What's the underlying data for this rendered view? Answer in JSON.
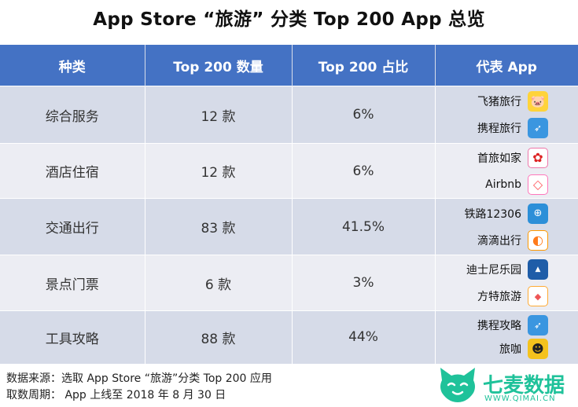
{
  "title": "App Store “旅游” 分类 Top 200 App 总览",
  "table": {
    "headers": [
      "种类",
      "Top 200 数量",
      "Top 200 占比",
      "代表 App"
    ],
    "rows": [
      {
        "category": "综合服务",
        "count": "12 款",
        "share": "6%",
        "apps": [
          {
            "name": "飞猪旅行",
            "icon": "pig-icon"
          },
          {
            "name": "携程旅行",
            "icon": "bird-icon"
          }
        ]
      },
      {
        "category": "酒店住宿",
        "count": "12 款",
        "share": "6%",
        "apps": [
          {
            "name": "首旅如家",
            "icon": "hotel-icon"
          },
          {
            "name": "Airbnb",
            "icon": "airbnb-icon"
          }
        ]
      },
      {
        "category": "交通出行",
        "count": "83 款",
        "share": "41.5%",
        "apps": [
          {
            "name": "铁路12306",
            "icon": "railway-icon"
          },
          {
            "name": "滴滴出行",
            "icon": "didi-icon"
          }
        ]
      },
      {
        "category": "景点门票",
        "count": "6 款",
        "share": "3%",
        "apps": [
          {
            "name": "迪士尼乐园",
            "icon": "disney-icon"
          },
          {
            "name": "方特旅游",
            "icon": "fangte-icon"
          }
        ]
      },
      {
        "category": "工具攻略",
        "count": "88 款",
        "share": "44%",
        "apps": [
          {
            "name": "携程攻略",
            "icon": "bird-icon"
          },
          {
            "name": "旅咖",
            "icon": "tiger-icon"
          }
        ]
      }
    ]
  },
  "footer": {
    "source": "数据来源：选取 App Store “旅游”分类 Top 200 应用",
    "period": "取数周期： App 上线至 2018 年 8 月 30 日"
  },
  "brand": {
    "name": "七麦数据",
    "url": "WWW.QIMAI.CN",
    "color": "#1fc29a"
  },
  "colors": {
    "header": "#4472c4",
    "row_odd": "#d6dbe8",
    "row_even": "#ecedf3"
  }
}
